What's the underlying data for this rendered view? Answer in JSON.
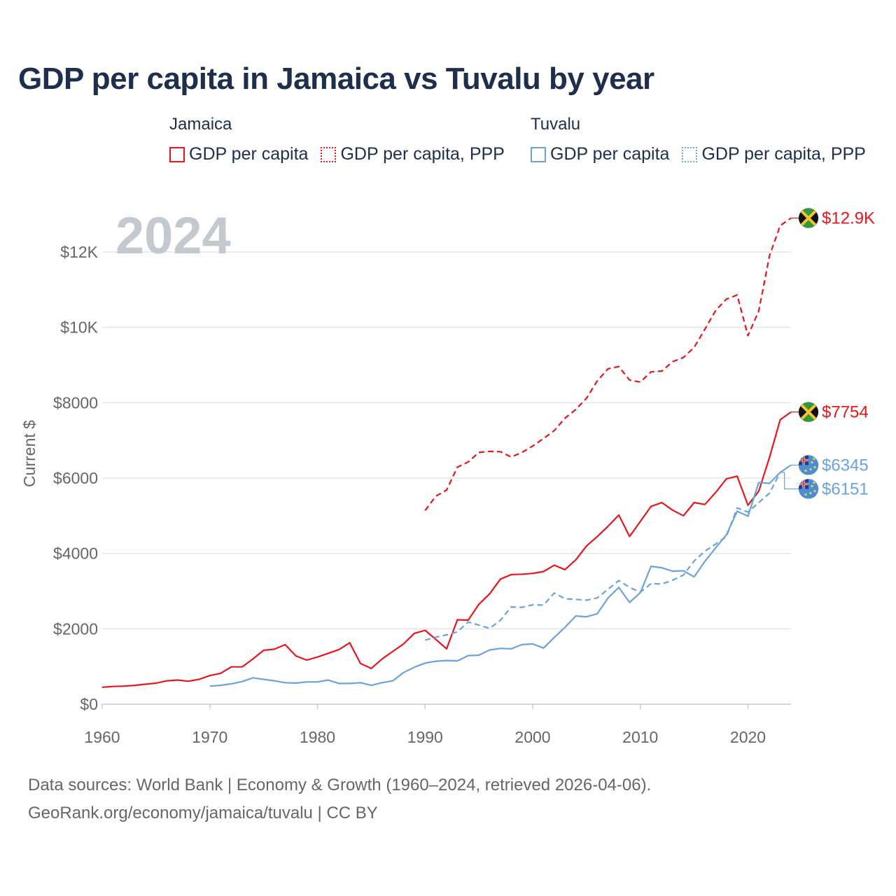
{
  "title": "GDP per capita in Jamaica vs Tuvalu by year",
  "legend": {
    "groups": [
      {
        "country": "Jamaica",
        "items": [
          "GDP per capita",
          "GDP per capita, PPP"
        ]
      },
      {
        "country": "Tuvalu",
        "items": [
          "GDP per capita",
          "GDP per capita, PPP"
        ]
      }
    ]
  },
  "year_label": "2024",
  "footer": {
    "line1": "Data sources: World Bank | Economy & Growth (1960–2024, retrieved 2026-04-06).",
    "line2": "GeoRank.org/economy/jamaica/tuvalu | CC BY"
  },
  "colors": {
    "jamaica": "#e8161b",
    "tuvalu": "#6aa3de",
    "text": "#1d2f4d",
    "axis": "#666666",
    "grid": "#e6e6e6"
  },
  "chart_data": {
    "type": "line",
    "ylabel": "Current $",
    "xlabel": "",
    "xlim": [
      1960,
      2024
    ],
    "ylim": [
      0,
      13000
    ],
    "x_ticks": [
      1960,
      1970,
      1980,
      1990,
      2000,
      2010,
      2020
    ],
    "x_tick_labels": [
      "1960",
      "1970",
      "1980",
      "1990",
      "2000",
      "2010",
      "2020"
    ],
    "y_ticks": [
      0,
      2000,
      4000,
      6000,
      8000,
      10000,
      12000
    ],
    "y_tick_labels": [
      "$0",
      "$2000",
      "$4000",
      "$6000",
      "$8000",
      "$10K",
      "$12K"
    ],
    "series": [
      {
        "name": "Jamaica GDP per capita",
        "country": "Jamaica",
        "style": "solid",
        "color": "#e8161b",
        "start_year": 1960,
        "end_label": "$7754",
        "values": [
          450,
          470,
          480,
          500,
          530,
          560,
          620,
          640,
          610,
          660,
          760,
          820,
          990,
          990,
          1200,
          1430,
          1460,
          1580,
          1280,
          1170,
          1250,
          1350,
          1450,
          1630,
          1080,
          950,
          1200,
          1400,
          1600,
          1880,
          1960,
          1720,
          1470,
          2240,
          2230,
          2650,
          2930,
          3320,
          3440,
          3450,
          3470,
          3520,
          3690,
          3570,
          3830,
          4200,
          4450,
          4720,
          5020,
          4450,
          4850,
          5250,
          5350,
          5150,
          5000,
          5350,
          5300,
          5620,
          5980,
          6050,
          5280,
          5650,
          6550,
          7550,
          7754
        ]
      },
      {
        "name": "Jamaica GDP per capita, PPP",
        "country": "Jamaica",
        "style": "dashed",
        "color": "#e8161b",
        "start_year": 1990,
        "end_label": "$12.9K",
        "values": [
          5140,
          5520,
          5680,
          6290,
          6430,
          6680,
          6710,
          6700,
          6560,
          6680,
          6850,
          7050,
          7260,
          7590,
          7820,
          8120,
          8580,
          8900,
          8960,
          8600,
          8550,
          8820,
          8840,
          9090,
          9200,
          9470,
          9950,
          10450,
          10750,
          10860,
          9780,
          10430,
          11900,
          12700,
          12900
        ]
      },
      {
        "name": "Tuvalu GDP per capita",
        "country": "Tuvalu",
        "style": "solid",
        "color": "#6aa3de",
        "start_year": 1970,
        "end_label": "$6345",
        "values": [
          480,
          500,
          540,
          600,
          700,
          660,
          620,
          570,
          560,
          590,
          590,
          640,
          550,
          550,
          570,
          500,
          570,
          620,
          840,
          980,
          1090,
          1140,
          1160,
          1150,
          1290,
          1300,
          1440,
          1480,
          1470,
          1580,
          1600,
          1490,
          1770,
          2040,
          2340,
          2320,
          2400,
          2820,
          3100,
          2700,
          2960,
          3660,
          3620,
          3530,
          3540,
          3380,
          3790,
          4150,
          4500,
          5120,
          4990,
          5880,
          5860,
          6150,
          6345
        ]
      },
      {
        "name": "Tuvalu GDP per capita, PPP",
        "country": "Tuvalu",
        "style": "dashed",
        "color": "#6aa3de",
        "start_year": 1990,
        "end_label": "$6151",
        "values": [
          1700,
          1780,
          1840,
          1920,
          2180,
          2100,
          2010,
          2230,
          2580,
          2570,
          2640,
          2630,
          2950,
          2800,
          2780,
          2760,
          2820,
          3050,
          3280,
          3100,
          2970,
          3200,
          3190,
          3290,
          3430,
          3800,
          4060,
          4250,
          4450,
          5210,
          5100,
          5350,
          5600,
          6151
        ]
      }
    ]
  }
}
